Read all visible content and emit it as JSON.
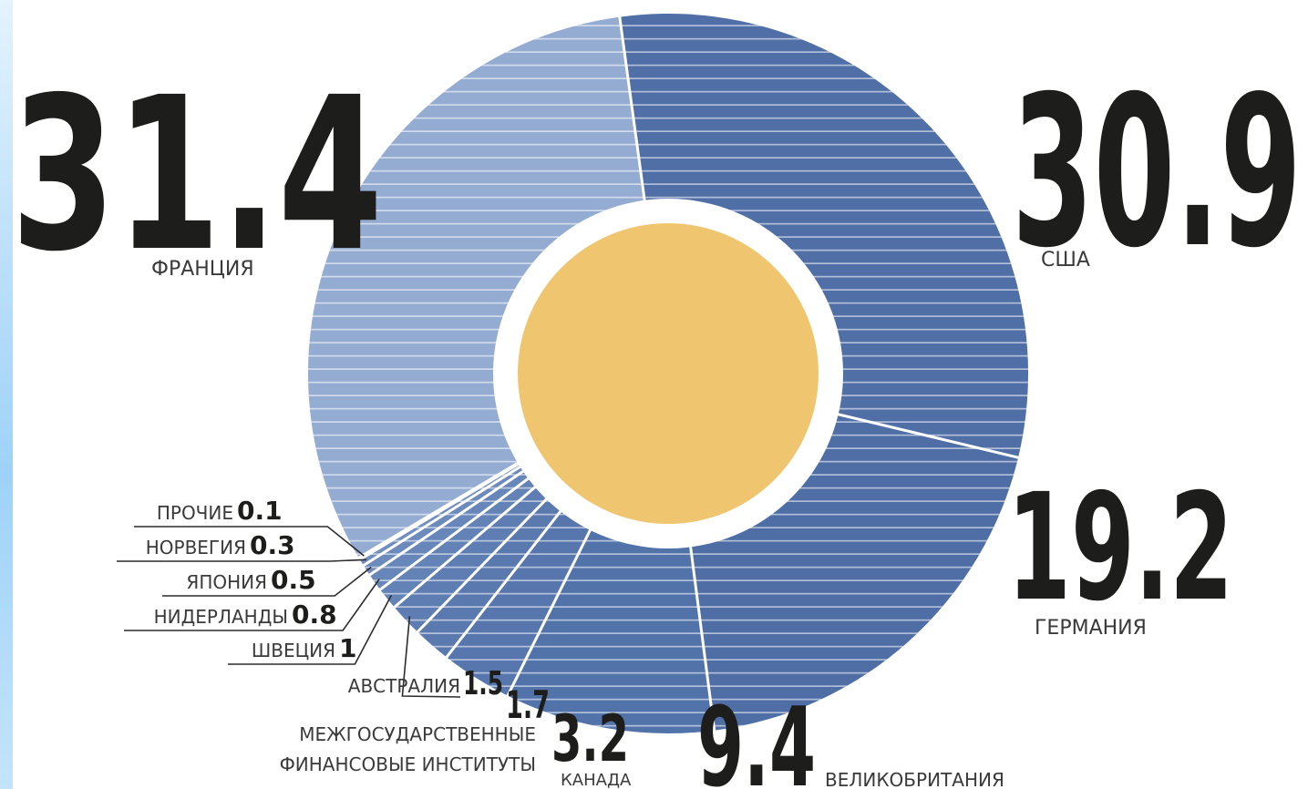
{
  "chart_data": {
    "type": "pie",
    "style": "donut",
    "direction": "clockwise from top",
    "slices": [
      {
        "label": "США",
        "value": 30.9,
        "color": "#4f6fa6"
      },
      {
        "label": "ГЕРМАНИЯ",
        "value": 19.2,
        "color": "#4e6ea5"
      },
      {
        "label": "ВЕЛИКОБРИТАНИЯ",
        "value": 9.4,
        "color": "#5273aa"
      },
      {
        "label": "КАНАДА",
        "value": 3.2,
        "color": "#5676ad"
      },
      {
        "label": "МЕЖГОСУДАРСТВЕННЫЕ ФИНАНСОВЫЕ ИНСТИТУТЫ",
        "value": 1.7,
        "color": "#5a79af"
      },
      {
        "label": "АВСТРАЛИЯ",
        "value": 1.5,
        "color": "#5e7db2"
      },
      {
        "label": "ШВЕЦИЯ",
        "value": 1,
        "color": "#6382b6"
      },
      {
        "label": "НИДЕРЛАНДЫ",
        "value": 0.8,
        "color": "#6786b9"
      },
      {
        "label": "ЯПОНИЯ",
        "value": 0.5,
        "color": "#6c8abc"
      },
      {
        "label": "НОРВЕГИЯ",
        "value": 0.3,
        "color": "#718ebf"
      },
      {
        "label": "ПРОЧИЕ",
        "value": 0.1,
        "color": "#7692c2"
      },
      {
        "label": "ФРАНЦИЯ",
        "value": 31.4,
        "color": "#95acd2"
      }
    ],
    "center_color": "#f0c56f"
  }
}
